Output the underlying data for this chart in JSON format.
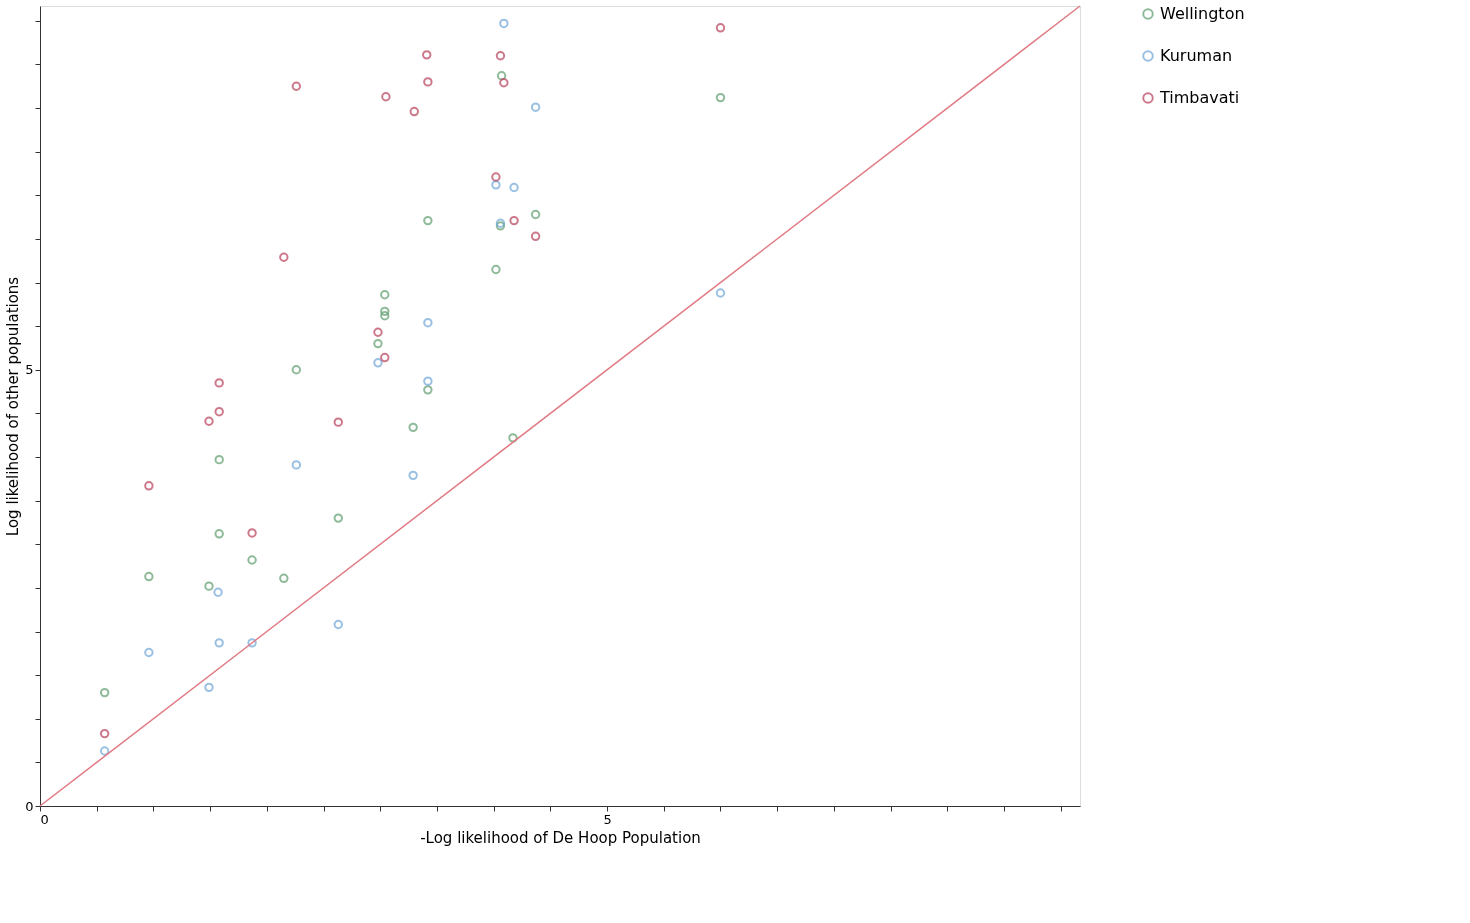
{
  "chart_data": {
    "type": "scatter",
    "xlabel": "-Log likelihood of De Hoop Population",
    "ylabel": "Log likelihood of other populations",
    "xlim": [
      0,
      9.17
    ],
    "ylim": [
      0,
      9.17
    ],
    "xticks": [
      0,
      {
        "value": 0.5,
        "label": null
      },
      {
        "value": 1,
        "label": null
      },
      {
        "value": 1.5,
        "label": null
      },
      {
        "value": 2,
        "label": null
      },
      {
        "value": 2.5,
        "label": null
      },
      {
        "value": 3,
        "label": null
      },
      {
        "value": 3.5,
        "label": null
      },
      {
        "value": 4,
        "label": null
      },
      {
        "value": 4.5,
        "label": null
      },
      5,
      {
        "value": 5.5,
        "label": null
      },
      {
        "value": 6,
        "label": null
      },
      {
        "value": 6.5,
        "label": null
      },
      {
        "value": 7,
        "label": null
      },
      {
        "value": 7.5,
        "label": null
      },
      {
        "value": 8,
        "label": null
      },
      {
        "value": 8.5,
        "label": null
      },
      {
        "value": 9,
        "label": null
      }
    ],
    "yticks": [
      0,
      {
        "value": 0.5,
        "label": null
      },
      {
        "value": 1,
        "label": null
      },
      {
        "value": 1.5,
        "label": null
      },
      {
        "value": 2,
        "label": null
      },
      {
        "value": 2.5,
        "label": null
      },
      {
        "value": 3,
        "label": null
      },
      {
        "value": 3.5,
        "label": null
      },
      {
        "value": 4,
        "label": null
      },
      {
        "value": 4.5,
        "label": null
      },
      5,
      {
        "value": 5.5,
        "label": null
      },
      {
        "value": 6,
        "label": null
      },
      {
        "value": 6.5,
        "label": null
      },
      {
        "value": 7,
        "label": null
      },
      {
        "value": 7.5,
        "label": null
      },
      {
        "value": 8,
        "label": null
      },
      {
        "value": 8.5,
        "label": null
      },
      {
        "value": 9,
        "label": null
      }
    ],
    "grid": false,
    "legend": "right",
    "marker": "circle",
    "series": [
      {
        "name": "Wellington",
        "color": "#5f9e6e",
        "x": [
          0.57,
          0.96,
          1.49,
          1.58,
          1.58,
          1.87,
          2.15,
          2.26,
          2.63,
          2.98,
          3.04,
          3.04,
          3.04,
          3.29,
          3.42,
          3.42,
          4.02,
          4.07,
          4.06,
          4.17,
          4.37,
          6.0
        ],
        "values": [
          1.3,
          2.63,
          2.52,
          3.97,
          3.12,
          2.82,
          2.61,
          5.0,
          3.3,
          5.3,
          5.86,
          5.67,
          5.62,
          4.34,
          4.77,
          6.71,
          6.15,
          8.37,
          6.65,
          4.22,
          6.78,
          8.12
        ]
      },
      {
        "name": "Kuruman",
        "color": "#6fa6d6",
        "x": [
          0.57,
          0.96,
          1.49,
          1.57,
          1.58,
          1.87,
          2.26,
          2.63,
          2.98,
          3.29,
          3.42,
          3.42,
          4.09,
          4.37,
          4.02,
          4.18,
          4.06,
          6.0
        ],
        "values": [
          0.63,
          1.76,
          1.36,
          2.45,
          1.87,
          1.87,
          3.91,
          2.08,
          5.08,
          3.79,
          5.54,
          4.87,
          8.97,
          8.01,
          7.12,
          7.09,
          6.68,
          5.88
        ]
      },
      {
        "name": "Timbavati",
        "color": "#b8405a",
        "x": [
          0.57,
          0.96,
          1.49,
          1.58,
          1.58,
          1.87,
          2.15,
          2.26,
          2.63,
          2.98,
          3.04,
          3.05,
          3.3,
          3.41,
          3.42,
          4.06,
          4.09,
          4.02,
          4.18,
          4.37,
          6.0
        ],
        "values": [
          0.83,
          3.67,
          4.41,
          4.52,
          4.85,
          3.13,
          6.29,
          8.25,
          4.4,
          5.43,
          5.14,
          8.13,
          7.96,
          8.61,
          8.3,
          8.6,
          8.29,
          7.21,
          6.71,
          6.53,
          8.92
        ]
      },
      {
        "type": "line",
        "color": "#e07a84",
        "marker": "none",
        "line_style": "solid",
        "x": [
          0,
          9.17
        ],
        "values": [
          0,
          9.17
        ]
      }
    ]
  }
}
